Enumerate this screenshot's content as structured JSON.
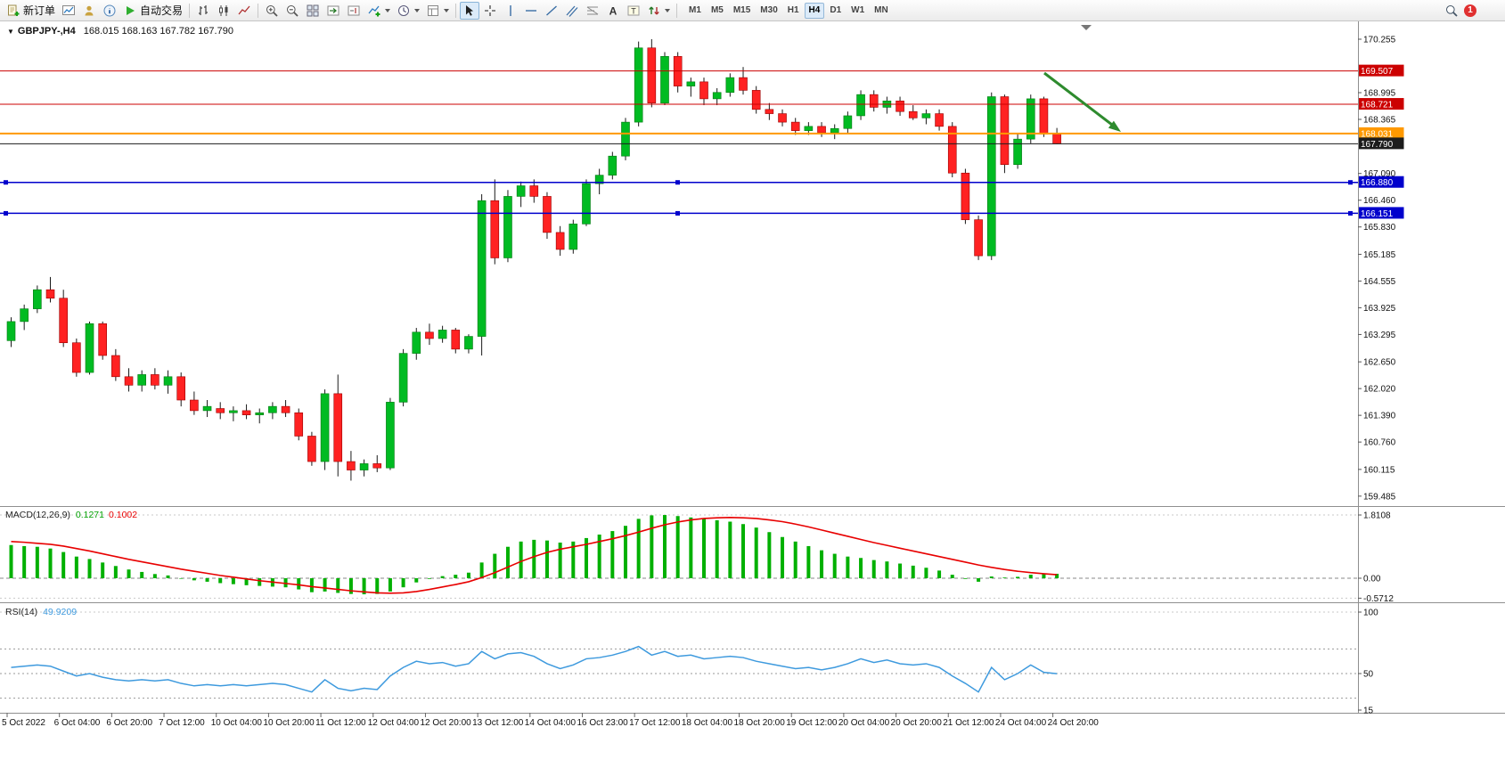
{
  "toolbar": {
    "new_order_label": "新订单",
    "autotrading_label": "自动交易",
    "timeframes": [
      "M1",
      "M5",
      "M15",
      "M30",
      "H1",
      "H4",
      "D1",
      "W1",
      "MN"
    ],
    "active_timeframe": "H4",
    "notification_count": "1",
    "text_tool_glyph": "A",
    "label_tool_glyph": "T"
  },
  "chart": {
    "expand_marker": "▼",
    "symbol_title": "GBPJPY-,H4",
    "ohlc_display": "168.015 168.163 167.782 167.790",
    "colors": {
      "up": "#00BB22",
      "up_border": "#007711",
      "down": "#FF2222",
      "down_border": "#990000",
      "wick": "#1a1a1a",
      "macd_hist": "#00B000",
      "macd_signal": "#E80000",
      "rsi_line": "#3E9ADE",
      "arrow": "#2E8B2E"
    },
    "price_axis_labels": [
      "170.255",
      "168.995",
      "168.365",
      "167.090",
      "166.460",
      "165.830",
      "165.185",
      "164.555",
      "163.925",
      "163.295",
      "162.650",
      "162.020",
      "161.390",
      "160.760",
      "160.115",
      "159.485"
    ],
    "time_axis_labels": [
      "5 Oct 2022",
      "6 Oct 04:00",
      "6 Oct 20:00",
      "7 Oct 12:00",
      "10 Oct 04:00",
      "10 Oct 20:00",
      "11 Oct 12:00",
      "12 Oct 04:00",
      "12 Oct 20:00",
      "13 Oct 12:00",
      "14 Oct 04:00",
      "16 Oct 23:00",
      "17 Oct 12:00",
      "18 Oct 04:00",
      "18 Oct 20:00",
      "19 Oct 12:00",
      "20 Oct 04:00",
      "20 Oct 20:00",
      "21 Oct 12:00",
      "24 Oct 04:00",
      "24 Oct 20:00"
    ],
    "horizontal_lines": [
      {
        "price": 169.507,
        "label": "169.507",
        "color": "#CC0000",
        "width": 1,
        "selected": false,
        "type": "resistance"
      },
      {
        "price": 168.721,
        "label": "168.721",
        "color": "#CC0000",
        "width": 1,
        "selected": false,
        "type": "resistance"
      },
      {
        "price": 168.031,
        "label": "168.031",
        "color": "#FF9900",
        "width": 2,
        "selected": false,
        "type": "pivot"
      },
      {
        "price": 167.79,
        "label": "167.790",
        "color": "#1c1c1c",
        "width": 1,
        "selected": false,
        "type": "current-bid"
      },
      {
        "price": 166.88,
        "label": "166.880",
        "color": "#0000CC",
        "width": 1.5,
        "selected": true,
        "type": "support"
      },
      {
        "price": 166.151,
        "label": "166.151",
        "color": "#0000CC",
        "width": 1.5,
        "selected": true,
        "type": "support"
      }
    ]
  },
  "chart_data": [
    {
      "type": "candlestick",
      "symbol": "GBPJPY-",
      "timeframe": "H4",
      "title": "GBPJPY-,H4",
      "current_ohlc": {
        "open": 168.015,
        "high": 168.163,
        "low": 167.782,
        "close": 167.79
      },
      "ylim": [
        159.3,
        170.55
      ],
      "x_label_every_n_candles": 4,
      "candles": [
        [
          163.15,
          163.7,
          163.0,
          163.6
        ],
        [
          163.6,
          164.0,
          163.4,
          163.9
        ],
        [
          163.9,
          164.45,
          163.8,
          164.35
        ],
        [
          164.35,
          164.65,
          164.05,
          164.15
        ],
        [
          164.15,
          164.35,
          163.0,
          163.1
        ],
        [
          163.1,
          163.2,
          162.3,
          162.4
        ],
        [
          162.4,
          163.6,
          162.35,
          163.55
        ],
        [
          163.55,
          163.6,
          162.7,
          162.8
        ],
        [
          162.8,
          162.95,
          162.2,
          162.3
        ],
        [
          162.3,
          162.5,
          161.95,
          162.1
        ],
        [
          162.1,
          162.45,
          161.95,
          162.35
        ],
        [
          162.35,
          162.5,
          162.0,
          162.1
        ],
        [
          162.1,
          162.45,
          161.9,
          162.3
        ],
        [
          162.3,
          162.4,
          161.6,
          161.75
        ],
        [
          161.75,
          161.95,
          161.4,
          161.5
        ],
        [
          161.5,
          161.75,
          161.35,
          161.6
        ],
        [
          161.55,
          161.7,
          161.3,
          161.45
        ],
        [
          161.45,
          161.6,
          161.25,
          161.5
        ],
        [
          161.5,
          161.65,
          161.3,
          161.4
        ],
        [
          161.4,
          161.55,
          161.2,
          161.45
        ],
        [
          161.45,
          161.7,
          161.3,
          161.6
        ],
        [
          161.6,
          161.75,
          161.35,
          161.45
        ],
        [
          161.45,
          161.55,
          160.8,
          160.9
        ],
        [
          160.9,
          161.0,
          160.2,
          160.3
        ],
        [
          160.3,
          162.0,
          160.1,
          161.9
        ],
        [
          161.9,
          162.35,
          159.95,
          160.3
        ],
        [
          160.3,
          160.55,
          159.85,
          160.1
        ],
        [
          160.1,
          160.35,
          159.95,
          160.25
        ],
        [
          160.25,
          160.45,
          160.05,
          160.15
        ],
        [
          160.15,
          161.8,
          160.1,
          161.7
        ],
        [
          161.7,
          162.95,
          161.6,
          162.85
        ],
        [
          162.85,
          163.45,
          162.7,
          163.35
        ],
        [
          163.35,
          163.55,
          163.05,
          163.2
        ],
        [
          163.2,
          163.5,
          163.1,
          163.4
        ],
        [
          163.4,
          163.45,
          162.85,
          162.95
        ],
        [
          162.95,
          163.3,
          162.85,
          163.25
        ],
        [
          163.25,
          166.6,
          162.8,
          166.45
        ],
        [
          166.45,
          166.95,
          164.95,
          165.1
        ],
        [
          165.1,
          166.7,
          165.0,
          166.55
        ],
        [
          166.55,
          166.9,
          166.3,
          166.8
        ],
        [
          166.8,
          166.95,
          166.4,
          166.55
        ],
        [
          166.55,
          166.65,
          165.55,
          165.7
        ],
        [
          165.7,
          165.85,
          165.15,
          165.3
        ],
        [
          165.3,
          166.0,
          165.2,
          165.9
        ],
        [
          165.9,
          166.95,
          165.85,
          166.85
        ],
        [
          166.85,
          167.2,
          166.6,
          167.05
        ],
        [
          167.05,
          167.6,
          166.95,
          167.5
        ],
        [
          167.5,
          168.4,
          167.4,
          168.3
        ],
        [
          168.3,
          170.2,
          168.2,
          170.05
        ],
        [
          170.05,
          170.255,
          168.65,
          168.75
        ],
        [
          168.75,
          169.95,
          168.7,
          169.85
        ],
        [
          169.85,
          169.95,
          169.0,
          169.15
        ],
        [
          169.15,
          169.35,
          168.9,
          169.25
        ],
        [
          169.25,
          169.35,
          168.7,
          168.85
        ],
        [
          168.85,
          169.1,
          168.7,
          169.0
        ],
        [
          169.0,
          169.45,
          168.9,
          169.35
        ],
        [
          169.35,
          169.6,
          168.95,
          169.05
        ],
        [
          169.05,
          169.15,
          168.5,
          168.6
        ],
        [
          168.6,
          168.75,
          168.35,
          168.5
        ],
        [
          168.5,
          168.6,
          168.2,
          168.3
        ],
        [
          168.3,
          168.4,
          168.0,
          168.1
        ],
        [
          168.1,
          168.3,
          168.0,
          168.2
        ],
        [
          168.2,
          168.3,
          167.95,
          168.05
        ],
        [
          168.05,
          168.25,
          167.9,
          168.15
        ],
        [
          168.15,
          168.55,
          168.05,
          168.45
        ],
        [
          168.45,
          169.05,
          168.35,
          168.95
        ],
        [
          168.95,
          169.05,
          168.55,
          168.65
        ],
        [
          168.65,
          168.9,
          168.5,
          168.8
        ],
        [
          168.8,
          168.9,
          168.45,
          168.55
        ],
        [
          168.55,
          168.7,
          168.35,
          168.4
        ],
        [
          168.4,
          168.6,
          168.25,
          168.5
        ],
        [
          168.5,
          168.6,
          168.1,
          168.2
        ],
        [
          168.2,
          168.3,
          167.0,
          167.1
        ],
        [
          167.1,
          167.2,
          165.9,
          166.0
        ],
        [
          166.0,
          166.1,
          165.05,
          165.15
        ],
        [
          165.15,
          169.0,
          165.05,
          168.9
        ],
        [
          168.9,
          168.95,
          167.1,
          167.3
        ],
        [
          167.3,
          168.05,
          167.2,
          167.9
        ],
        [
          167.9,
          168.95,
          167.8,
          168.85
        ],
        [
          168.85,
          168.9,
          167.95,
          168.02
        ],
        [
          168.015,
          168.163,
          167.782,
          167.79
        ]
      ]
    },
    {
      "type": "bar",
      "name": "MACD",
      "title": "MACD(12,26,9)",
      "current_values": [
        "0.1271",
        "0.1002"
      ],
      "scale_labels": [
        "1.8108",
        "0.00",
        "-0.5712"
      ],
      "ylim": [
        -0.69,
        1.95
      ],
      "legend_colors": {
        "main": "#00A000",
        "signal": "#E80000"
      },
      "main": [
        0.95,
        0.92,
        0.9,
        0.85,
        0.75,
        0.62,
        0.55,
        0.45,
        0.35,
        0.25,
        0.18,
        0.12,
        0.08,
        0.0,
        -0.06,
        -0.1,
        -0.14,
        -0.17,
        -0.2,
        -0.22,
        -0.24,
        -0.26,
        -0.32,
        -0.4,
        -0.38,
        -0.42,
        -0.45,
        -0.46,
        -0.45,
        -0.38,
        -0.26,
        -0.12,
        -0.02,
        0.06,
        0.1,
        0.16,
        0.45,
        0.7,
        0.9,
        1.05,
        1.1,
        1.08,
        1.02,
        1.05,
        1.15,
        1.25,
        1.35,
        1.5,
        1.7,
        1.8,
        1.81,
        1.78,
        1.74,
        1.7,
        1.66,
        1.62,
        1.55,
        1.45,
        1.32,
        1.18,
        1.05,
        0.92,
        0.8,
        0.7,
        0.62,
        0.58,
        0.52,
        0.48,
        0.42,
        0.36,
        0.3,
        0.22,
        0.1,
        -0.02,
        -0.1,
        0.05,
        0.02,
        0.04,
        0.1,
        0.13,
        0.1271
      ],
      "signal": [
        1.05,
        1.03,
        1.0,
        0.97,
        0.92,
        0.85,
        0.78,
        0.7,
        0.62,
        0.54,
        0.47,
        0.4,
        0.33,
        0.26,
        0.2,
        0.14,
        0.08,
        0.03,
        -0.02,
        -0.07,
        -0.11,
        -0.15,
        -0.19,
        -0.24,
        -0.28,
        -0.32,
        -0.36,
        -0.39,
        -0.42,
        -0.43,
        -0.42,
        -0.38,
        -0.32,
        -0.25,
        -0.18,
        -0.1,
        0.02,
        0.16,
        0.32,
        0.48,
        0.62,
        0.74,
        0.83,
        0.9,
        0.97,
        1.05,
        1.13,
        1.22,
        1.32,
        1.43,
        1.53,
        1.61,
        1.67,
        1.71,
        1.73,
        1.74,
        1.73,
        1.71,
        1.67,
        1.62,
        1.55,
        1.47,
        1.38,
        1.29,
        1.2,
        1.11,
        1.02,
        0.94,
        0.86,
        0.78,
        0.7,
        0.62,
        0.54,
        0.46,
        0.38,
        0.31,
        0.25,
        0.2,
        0.16,
        0.13,
        0.1002
      ]
    },
    {
      "type": "line",
      "name": "RSI",
      "title": "RSI(14)",
      "current_value": "49.9209",
      "scale_labels": [
        "100",
        "50",
        "15"
      ],
      "levels": [
        70,
        50,
        30
      ],
      "ylim": [
        15,
        100
      ],
      "values": [
        55,
        56,
        57,
        56,
        52,
        48,
        50,
        47,
        45,
        44,
        45,
        44,
        45,
        42,
        40,
        41,
        40,
        41,
        40,
        41,
        42,
        41,
        38,
        35,
        45,
        38,
        36,
        38,
        37,
        48,
        55,
        60,
        58,
        59,
        56,
        58,
        68,
        62,
        66,
        67,
        64,
        58,
        54,
        57,
        62,
        63,
        65,
        68,
        72,
        65,
        68,
        64,
        65,
        62,
        63,
        64,
        63,
        60,
        58,
        56,
        54,
        55,
        53,
        55,
        58,
        62,
        59,
        61,
        58,
        57,
        58,
        55,
        48,
        42,
        35,
        55,
        45,
        50,
        57,
        51,
        49.92
      ]
    }
  ]
}
